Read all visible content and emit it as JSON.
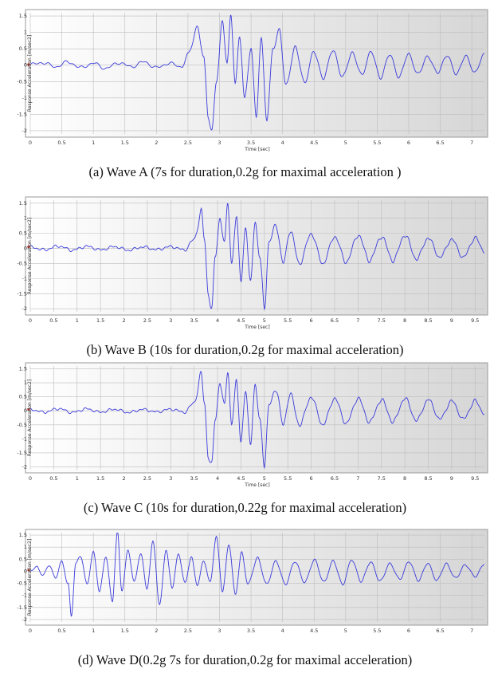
{
  "chart_data": [
    {
      "type": "line",
      "xlabel": "Time [sec]",
      "ylabel": "Response Acceleration [m/sec2]",
      "xlim": [
        0,
        7.2
      ],
      "ylim": [
        -2.1,
        1.6
      ],
      "xticks": [
        "0",
        "0.5",
        "1",
        "1.5",
        "2",
        "2.5",
        "3",
        "3.5",
        "4",
        "4.5",
        "5",
        "5.5",
        "6",
        "6.5",
        "7"
      ],
      "yticks": [
        "1.5",
        "1",
        "0.5",
        "0",
        "-0.5",
        "-1",
        "-1.5",
        "-2"
      ],
      "line_color": "#3b3bdc",
      "grid": true,
      "caption": "(a) Wave A (7s for duration,0.2g for maximal acceleration )",
      "points": [
        [
          0,
          0.02
        ],
        [
          0.2,
          0.08
        ],
        [
          0.4,
          -0.05
        ],
        [
          0.6,
          0.1
        ],
        [
          0.8,
          -0.08
        ],
        [
          1.0,
          0.06
        ],
        [
          1.2,
          -0.1
        ],
        [
          1.4,
          0.08
        ],
        [
          1.6,
          -0.05
        ],
        [
          1.8,
          0.1
        ],
        [
          2.0,
          -0.08
        ],
        [
          2.2,
          0.06
        ],
        [
          2.4,
          -0.05
        ],
        [
          2.5,
          0.3
        ],
        [
          2.65,
          1.2
        ],
        [
          2.75,
          0.2
        ],
        [
          2.82,
          -1.5
        ],
        [
          2.88,
          -1.95
        ],
        [
          2.95,
          -0.5
        ],
        [
          3.05,
          1.3
        ],
        [
          3.12,
          0.1
        ],
        [
          3.18,
          1.5
        ],
        [
          3.25,
          -0.6
        ],
        [
          3.32,
          0.9
        ],
        [
          3.4,
          -1.0
        ],
        [
          3.5,
          0.5
        ],
        [
          3.58,
          -1.5
        ],
        [
          3.66,
          0.8
        ],
        [
          3.75,
          -1.7
        ],
        [
          3.85,
          0.6
        ],
        [
          3.95,
          1.0
        ],
        [
          4.05,
          -0.6
        ],
        [
          4.2,
          0.5
        ],
        [
          4.35,
          -0.5
        ],
        [
          4.5,
          0.4
        ],
        [
          4.65,
          -0.4
        ],
        [
          4.8,
          0.5
        ],
        [
          4.95,
          -0.4
        ],
        [
          5.1,
          0.4
        ],
        [
          5.25,
          -0.3
        ],
        [
          5.4,
          0.4
        ],
        [
          5.55,
          -0.35
        ],
        [
          5.7,
          0.3
        ],
        [
          5.85,
          -0.35
        ],
        [
          6.0,
          0.35
        ],
        [
          6.15,
          -0.3
        ],
        [
          6.3,
          0.3
        ],
        [
          6.45,
          -0.25
        ],
        [
          6.6,
          0.3
        ],
        [
          6.75,
          -0.25
        ],
        [
          6.9,
          0.25
        ],
        [
          7.05,
          -0.2
        ],
        [
          7.2,
          0.3
        ]
      ]
    },
    {
      "type": "line",
      "xlabel": "Time [sec]",
      "ylabel": "Response Acceleration [m/sec2]",
      "xlim": [
        0,
        9.7
      ],
      "ylim": [
        -2.1,
        1.6
      ],
      "xticks": [
        "0",
        "0.5",
        "1",
        "1.5",
        "2",
        "2.5",
        "3",
        "3.5",
        "4",
        "4.5",
        "5",
        "5.5",
        "6",
        "6.5",
        "7",
        "7.5",
        "8",
        "8.5",
        "9",
        "9.5"
      ],
      "yticks": [
        "1.5",
        "1",
        "0.5",
        "0",
        "-0.5",
        "-1",
        "-1.5",
        "-2"
      ],
      "line_color": "#3b3bdc",
      "grid": true,
      "caption": "(b) Wave B (10s for duration,0.2g for maximal acceleration)",
      "points": [
        [
          0,
          0.05
        ],
        [
          0.3,
          -0.05
        ],
        [
          0.6,
          0.08
        ],
        [
          0.9,
          -0.06
        ],
        [
          1.2,
          0.07
        ],
        [
          1.5,
          -0.05
        ],
        [
          1.8,
          0.06
        ],
        [
          2.1,
          -0.06
        ],
        [
          2.4,
          0.05
        ],
        [
          2.7,
          -0.04
        ],
        [
          3.0,
          0.06
        ],
        [
          3.3,
          -0.05
        ],
        [
          3.5,
          0.3
        ],
        [
          3.65,
          1.2
        ],
        [
          3.72,
          0.3
        ],
        [
          3.8,
          -1.5
        ],
        [
          3.88,
          -1.95
        ],
        [
          3.95,
          -0.3
        ],
        [
          4.05,
          1.0
        ],
        [
          4.15,
          0.2
        ],
        [
          4.22,
          1.5
        ],
        [
          4.3,
          -0.5
        ],
        [
          4.4,
          1.0
        ],
        [
          4.5,
          -1.0
        ],
        [
          4.6,
          0.7
        ],
        [
          4.7,
          -1.2
        ],
        [
          4.8,
          0.9
        ],
        [
          4.9,
          -0.3
        ],
        [
          5.0,
          -1.9
        ],
        [
          5.1,
          0.2
        ],
        [
          5.25,
          0.8
        ],
        [
          5.4,
          -0.5
        ],
        [
          5.55,
          0.6
        ],
        [
          5.75,
          -0.5
        ],
        [
          6.0,
          0.5
        ],
        [
          6.25,
          -0.5
        ],
        [
          6.5,
          0.4
        ],
        [
          6.75,
          -0.45
        ],
        [
          7.0,
          0.45
        ],
        [
          7.25,
          -0.4
        ],
        [
          7.5,
          0.4
        ],
        [
          7.75,
          -0.4
        ],
        [
          8.0,
          0.45
        ],
        [
          8.25,
          -0.35
        ],
        [
          8.5,
          0.35
        ],
        [
          8.75,
          -0.3
        ],
        [
          9.0,
          0.3
        ],
        [
          9.25,
          -0.3
        ],
        [
          9.5,
          0.35
        ],
        [
          9.7,
          -0.1
        ]
      ]
    },
    {
      "type": "line",
      "xlabel": "Time [sec]",
      "ylabel": "Response Acceleration [m/sec2]",
      "xlim": [
        0,
        9.7
      ],
      "ylim": [
        -2.1,
        1.6
      ],
      "xticks": [
        "0",
        "0.5",
        "1",
        "1.5",
        "2",
        "2.5",
        "3",
        "3.5",
        "4",
        "4.5",
        "5",
        "5.5",
        "6",
        "6.5",
        "7",
        "7.5",
        "8",
        "8.5",
        "9",
        "9.5"
      ],
      "yticks": [
        "1.5",
        "1",
        "0.5",
        "0",
        "-0.5",
        "-1",
        "-1.5",
        "-2"
      ],
      "line_color": "#3b3bdc",
      "grid": true,
      "caption": "(c) Wave C (10s for duration,0.22g for maximal acceleration)",
      "points": [
        [
          0,
          0.05
        ],
        [
          0.3,
          -0.05
        ],
        [
          0.6,
          0.08
        ],
        [
          0.9,
          -0.06
        ],
        [
          1.2,
          0.07
        ],
        [
          1.5,
          -0.05
        ],
        [
          1.8,
          0.06
        ],
        [
          2.1,
          -0.06
        ],
        [
          2.4,
          0.05
        ],
        [
          2.7,
          -0.04
        ],
        [
          3.0,
          0.06
        ],
        [
          3.3,
          -0.05
        ],
        [
          3.5,
          0.3
        ],
        [
          3.65,
          1.25
        ],
        [
          3.72,
          0.3
        ],
        [
          3.8,
          -1.6
        ],
        [
          3.88,
          -1.95
        ],
        [
          3.95,
          -0.3
        ],
        [
          4.05,
          1.0
        ],
        [
          4.15,
          0.2
        ],
        [
          4.22,
          1.5
        ],
        [
          4.3,
          -0.5
        ],
        [
          4.4,
          1.0
        ],
        [
          4.5,
          -1.0
        ],
        [
          4.6,
          0.7
        ],
        [
          4.7,
          -1.2
        ],
        [
          4.8,
          0.9
        ],
        [
          4.9,
          -0.3
        ],
        [
          5.0,
          -1.85
        ],
        [
          5.1,
          0.2
        ],
        [
          5.25,
          0.8
        ],
        [
          5.4,
          -0.5
        ],
        [
          5.55,
          0.6
        ],
        [
          5.75,
          -0.5
        ],
        [
          6.0,
          0.5
        ],
        [
          6.25,
          -0.5
        ],
        [
          6.5,
          0.45
        ],
        [
          6.75,
          -0.45
        ],
        [
          7.0,
          0.45
        ],
        [
          7.25,
          -0.4
        ],
        [
          7.5,
          0.4
        ],
        [
          7.75,
          -0.4
        ],
        [
          8.0,
          0.45
        ],
        [
          8.25,
          -0.35
        ],
        [
          8.5,
          0.4
        ],
        [
          8.75,
          -0.3
        ],
        [
          9.0,
          0.35
        ],
        [
          9.25,
          -0.3
        ],
        [
          9.5,
          0.35
        ],
        [
          9.7,
          -0.1
        ]
      ]
    },
    {
      "type": "line",
      "xlabel": "",
      "ylabel": "Response Acceleration [m/sec2]",
      "xlim": [
        0,
        7.2
      ],
      "ylim": [
        -2.1,
        1.6
      ],
      "xticks": [
        "0",
        "0.5",
        "1",
        "1.5",
        "2",
        "2.5",
        "3",
        "3.5",
        "4",
        "4.5",
        "5",
        "5.5",
        "6",
        "6.5",
        "7"
      ],
      "yticks": [
        "1.5",
        "1",
        "0.5",
        "0",
        "-0.5",
        "-1",
        "-1.5",
        "-2"
      ],
      "line_color": "#3b3bdc",
      "grid": true,
      "caption": "(d) Wave D(0.2g 7s for duration,0.2g for maximal acceleration)",
      "points": [
        [
          0,
          0.05
        ],
        [
          0.1,
          0.2
        ],
        [
          0.2,
          -0.2
        ],
        [
          0.3,
          0.3
        ],
        [
          0.4,
          -0.3
        ],
        [
          0.5,
          0.4
        ],
        [
          0.6,
          -0.5
        ],
        [
          0.65,
          -1.95
        ],
        [
          0.72,
          0.3
        ],
        [
          0.8,
          0.7
        ],
        [
          0.9,
          -0.6
        ],
        [
          1.0,
          0.8
        ],
        [
          1.1,
          -0.8
        ],
        [
          1.2,
          0.6
        ],
        [
          1.3,
          -1.2
        ],
        [
          1.38,
          1.55
        ],
        [
          1.45,
          -0.8
        ],
        [
          1.55,
          0.9
        ],
        [
          1.65,
          -0.5
        ],
        [
          1.75,
          0.8
        ],
        [
          1.85,
          -0.7
        ],
        [
          1.95,
          1.2
        ],
        [
          2.05,
          -1.4
        ],
        [
          2.15,
          0.8
        ],
        [
          2.25,
          -0.6
        ],
        [
          2.35,
          0.7
        ],
        [
          2.45,
          -0.5
        ],
        [
          2.55,
          0.6
        ],
        [
          2.65,
          -0.6
        ],
        [
          2.75,
          0.5
        ],
        [
          2.85,
          -0.5
        ],
        [
          2.95,
          1.4
        ],
        [
          3.05,
          -0.8
        ],
        [
          3.15,
          1.1
        ],
        [
          3.25,
          -0.9
        ],
        [
          3.35,
          0.7
        ],
        [
          3.45,
          -0.5
        ],
        [
          3.6,
          0.5
        ],
        [
          3.75,
          -0.5
        ],
        [
          3.9,
          0.4
        ],
        [
          4.05,
          -0.55
        ],
        [
          4.2,
          0.45
        ],
        [
          4.35,
          -0.5
        ],
        [
          4.5,
          0.5
        ],
        [
          4.65,
          -0.45
        ],
        [
          4.8,
          0.4
        ],
        [
          4.95,
          -0.5
        ],
        [
          5.1,
          0.45
        ],
        [
          5.25,
          -0.4
        ],
        [
          5.4,
          0.4
        ],
        [
          5.55,
          -0.45
        ],
        [
          5.7,
          0.35
        ],
        [
          5.85,
          -0.35
        ],
        [
          6.0,
          0.4
        ],
        [
          6.15,
          -0.35
        ],
        [
          6.3,
          0.3
        ],
        [
          6.45,
          -0.35
        ],
        [
          6.6,
          0.3
        ],
        [
          6.75,
          -0.3
        ],
        [
          6.9,
          0.3
        ],
        [
          7.05,
          -0.25
        ],
        [
          7.2,
          0.35
        ]
      ]
    }
  ]
}
